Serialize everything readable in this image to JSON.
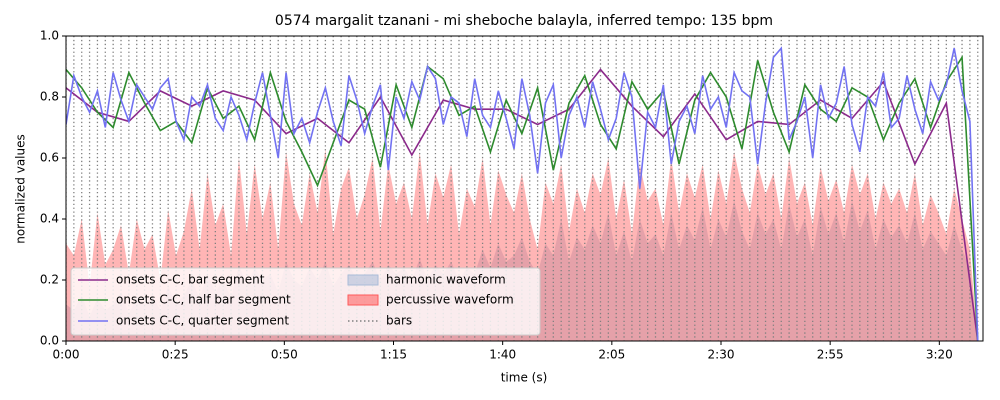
{
  "chart_data": {
    "type": "line",
    "title": "0574 margalit tzanani - mi sheboche balayla, inferred tempo: 135 bpm",
    "xlabel": "time (s)",
    "ylabel": "normalized values",
    "xlim": [
      0,
      210
    ],
    "ylim": [
      0,
      1
    ],
    "xticks": [
      {
        "value": 0,
        "label": "0:00"
      },
      {
        "value": 25,
        "label": "0:25"
      },
      {
        "value": 50,
        "label": "0:50"
      },
      {
        "value": 75,
        "label": "1:15"
      },
      {
        "value": 100,
        "label": "1:40"
      },
      {
        "value": 125,
        "label": "2:05"
      },
      {
        "value": 150,
        "label": "2:30"
      },
      {
        "value": 175,
        "label": "2:55"
      },
      {
        "value": 200,
        "label": "3:20"
      }
    ],
    "yticks": [
      {
        "value": 0,
        "label": "0.0"
      },
      0.2,
      0.4,
      0.6,
      0.8,
      {
        "value": 1,
        "label": "1.0"
      }
    ],
    "legend": "lower left",
    "x": [
      0,
      1.8,
      3.6,
      5.4,
      7.2,
      9,
      10.8,
      12.6,
      14.4,
      16.2,
      18,
      19.8,
      21.6,
      23.4,
      25.2,
      27,
      28.8,
      30.6,
      32.4,
      34.2,
      36,
      37.8,
      39.6,
      41.4,
      43.2,
      45,
      46.8,
      48.6,
      50.4,
      52.2,
      54,
      55.8,
      57.6,
      59.4,
      61.2,
      63,
      64.8,
      66.6,
      68.4,
      70.2,
      72,
      73.8,
      75.6,
      77.4,
      79.2,
      81,
      82.8,
      84.6,
      86.4,
      88.2,
      90,
      91.8,
      93.6,
      95.4,
      97.2,
      99,
      100.8,
      102.6,
      104.4,
      106.2,
      108,
      109.8,
      111.6,
      113.4,
      115.2,
      117,
      118.8,
      120.6,
      122.4,
      124.2,
      126,
      127.8,
      129.6,
      131.4,
      133.2,
      135,
      136.8,
      138.6,
      140.4,
      142.2,
      144,
      145.8,
      147.6,
      149.4,
      151.2,
      153,
      154.8,
      156.6,
      158.4,
      160.2,
      162,
      163.8,
      165.6,
      167.4,
      169.2,
      171,
      172.8,
      174.6,
      176.4,
      178.2,
      180,
      181.8,
      183.6,
      185.4,
      187.2,
      189,
      190.8,
      192.6,
      194.4,
      196.2,
      198,
      199.8,
      201.6,
      203.4,
      205.2,
      207,
      208.8
    ],
    "series": [
      {
        "name": "onsets C-C, bar segment",
        "color": "#8b2a8b",
        "x": [
          0,
          7.2,
          14.4,
          21.6,
          28.8,
          36,
          43.2,
          50.4,
          57.6,
          64.8,
          72,
          79.2,
          86.4,
          93.6,
          100.8,
          108,
          115.2,
          122.4,
          129.6,
          136.8,
          144,
          151.2,
          158.4,
          165.6,
          172.8,
          180,
          187.2,
          194.4,
          201.6,
          208.8
        ],
        "values": [
          0.83,
          0.75,
          0.72,
          0.82,
          0.77,
          0.82,
          0.79,
          0.68,
          0.73,
          0.65,
          0.8,
          0.61,
          0.79,
          0.76,
          0.76,
          0.71,
          0.76,
          0.89,
          0.77,
          0.67,
          0.81,
          0.66,
          0.72,
          0.71,
          0.79,
          0.73,
          0.85,
          0.58,
          0.78,
          0.0
        ]
      },
      {
        "name": "onsets C-C, half bar segment",
        "color": "#2e8b2e",
        "x": [
          0,
          3.6,
          7.2,
          10.8,
          14.4,
          18,
          21.6,
          25.2,
          28.8,
          32.4,
          36,
          39.6,
          43.2,
          46.8,
          50.4,
          54,
          57.6,
          61.2,
          64.8,
          68.4,
          72,
          75.6,
          79.2,
          82.8,
          86.4,
          90,
          93.6,
          97.2,
          100.8,
          104.4,
          108,
          111.6,
          115.2,
          118.8,
          122.4,
          126,
          129.6,
          133.2,
          136.8,
          140.4,
          144,
          147.6,
          151.2,
          154.8,
          158.4,
          162,
          165.6,
          169.2,
          172.8,
          176.4,
          180,
          183.6,
          187.2,
          190.8,
          194.4,
          198,
          201.6,
          205.2,
          208.8
        ],
        "values": [
          0.89,
          0.83,
          0.75,
          0.7,
          0.88,
          0.78,
          0.69,
          0.72,
          0.65,
          0.83,
          0.73,
          0.77,
          0.66,
          0.88,
          0.72,
          0.62,
          0.51,
          0.65,
          0.79,
          0.76,
          0.57,
          0.84,
          0.7,
          0.9,
          0.86,
          0.74,
          0.77,
          0.62,
          0.79,
          0.68,
          0.83,
          0.56,
          0.78,
          0.87,
          0.71,
          0.63,
          0.85,
          0.76,
          0.82,
          0.58,
          0.79,
          0.88,
          0.8,
          0.63,
          0.92,
          0.75,
          0.62,
          0.84,
          0.76,
          0.72,
          0.83,
          0.8,
          0.66,
          0.78,
          0.86,
          0.7,
          0.85,
          0.93,
          0.0
        ]
      },
      {
        "name": "onsets C-C, quarter segment",
        "color": "#7272f2",
        "values": [
          0.71,
          0.87,
          0.8,
          0.75,
          0.82,
          0.7,
          0.88,
          0.79,
          0.72,
          0.84,
          0.8,
          0.76,
          0.83,
          0.86,
          0.72,
          0.66,
          0.8,
          0.77,
          0.84,
          0.73,
          0.69,
          0.8,
          0.74,
          0.66,
          0.78,
          0.88,
          0.74,
          0.6,
          0.88,
          0.68,
          0.73,
          0.65,
          0.75,
          0.83,
          0.72,
          0.64,
          0.87,
          0.79,
          0.68,
          0.77,
          0.84,
          0.56,
          0.8,
          0.73,
          0.85,
          0.79,
          0.9,
          0.86,
          0.71,
          0.8,
          0.78,
          0.67,
          0.86,
          0.74,
          0.7,
          0.82,
          0.73,
          0.63,
          0.86,
          0.74,
          0.55,
          0.78,
          0.84,
          0.6,
          0.74,
          0.8,
          0.7,
          0.85,
          0.76,
          0.66,
          0.73,
          0.88,
          0.8,
          0.5,
          0.75,
          0.7,
          0.84,
          0.58,
          0.72,
          0.77,
          0.68,
          0.87,
          0.76,
          0.8,
          0.7,
          0.88,
          0.82,
          0.8,
          0.58,
          0.78,
          0.93,
          0.96,
          0.66,
          0.72,
          0.8,
          0.6,
          0.84,
          0.73,
          0.78,
          0.9,
          0.71,
          0.62,
          0.8,
          0.77,
          0.88,
          0.7,
          0.73,
          0.87,
          0.76,
          0.68,
          0.85,
          0.79,
          0.84,
          0.96,
          0.82,
          0.72,
          0.0
        ]
      }
    ],
    "areas": [
      {
        "name": "harmonic waveform",
        "color": "#a9bcd8",
        "values": [
          0.12,
          0.1,
          0.15,
          0.08,
          0.14,
          0.1,
          0.12,
          0.16,
          0.09,
          0.14,
          0.12,
          0.15,
          0.1,
          0.18,
          0.12,
          0.15,
          0.2,
          0.14,
          0.22,
          0.16,
          0.2,
          0.14,
          0.25,
          0.18,
          0.24,
          0.2,
          0.22,
          0.16,
          0.26,
          0.2,
          0.18,
          0.24,
          0.2,
          0.26,
          0.18,
          0.22,
          0.25,
          0.2,
          0.22,
          0.26,
          0.2,
          0.25,
          0.22,
          0.24,
          0.2,
          0.27,
          0.2,
          0.25,
          0.22,
          0.26,
          0.2,
          0.24,
          0.22,
          0.3,
          0.24,
          0.32,
          0.26,
          0.28,
          0.34,
          0.26,
          0.22,
          0.32,
          0.28,
          0.4,
          0.26,
          0.34,
          0.3,
          0.38,
          0.32,
          0.42,
          0.28,
          0.36,
          0.26,
          0.4,
          0.32,
          0.35,
          0.28,
          0.42,
          0.3,
          0.38,
          0.33,
          0.44,
          0.3,
          0.4,
          0.34,
          0.46,
          0.36,
          0.3,
          0.42,
          0.35,
          0.4,
          0.3,
          0.45,
          0.34,
          0.4,
          0.28,
          0.44,
          0.35,
          0.42,
          0.32,
          0.46,
          0.36,
          0.43,
          0.3,
          0.4,
          0.34,
          0.38,
          0.32,
          0.42,
          0.3,
          0.36,
          0.32,
          0.28,
          0.38,
          0.3,
          0.24,
          0.0
        ]
      },
      {
        "name": "percussive waveform",
        "color": "#ff5a5a",
        "values": [
          0.32,
          0.28,
          0.4,
          0.18,
          0.42,
          0.25,
          0.3,
          0.38,
          0.22,
          0.4,
          0.3,
          0.35,
          0.2,
          0.43,
          0.28,
          0.36,
          0.5,
          0.3,
          0.55,
          0.38,
          0.45,
          0.28,
          0.6,
          0.35,
          0.58,
          0.4,
          0.52,
          0.3,
          0.62,
          0.45,
          0.38,
          0.55,
          0.42,
          0.63,
          0.35,
          0.5,
          0.57,
          0.4,
          0.48,
          0.6,
          0.36,
          0.58,
          0.45,
          0.52,
          0.4,
          0.62,
          0.38,
          0.55,
          0.47,
          0.58,
          0.35,
          0.5,
          0.44,
          0.6,
          0.38,
          0.56,
          0.48,
          0.42,
          0.55,
          0.4,
          0.3,
          0.52,
          0.45,
          0.58,
          0.36,
          0.5,
          0.42,
          0.55,
          0.48,
          0.6,
          0.4,
          0.53,
          0.35,
          0.58,
          0.46,
          0.5,
          0.38,
          0.6,
          0.42,
          0.55,
          0.47,
          0.58,
          0.4,
          0.56,
          0.45,
          0.62,
          0.5,
          0.42,
          0.58,
          0.48,
          0.55,
          0.4,
          0.6,
          0.45,
          0.52,
          0.38,
          0.57,
          0.46,
          0.53,
          0.42,
          0.58,
          0.48,
          0.55,
          0.4,
          0.52,
          0.45,
          0.5,
          0.42,
          0.55,
          0.38,
          0.48,
          0.42,
          0.35,
          0.5,
          0.4,
          0.3,
          0.0
        ]
      }
    ],
    "bars": {
      "name": "bars",
      "color": "#808080"
    }
  }
}
